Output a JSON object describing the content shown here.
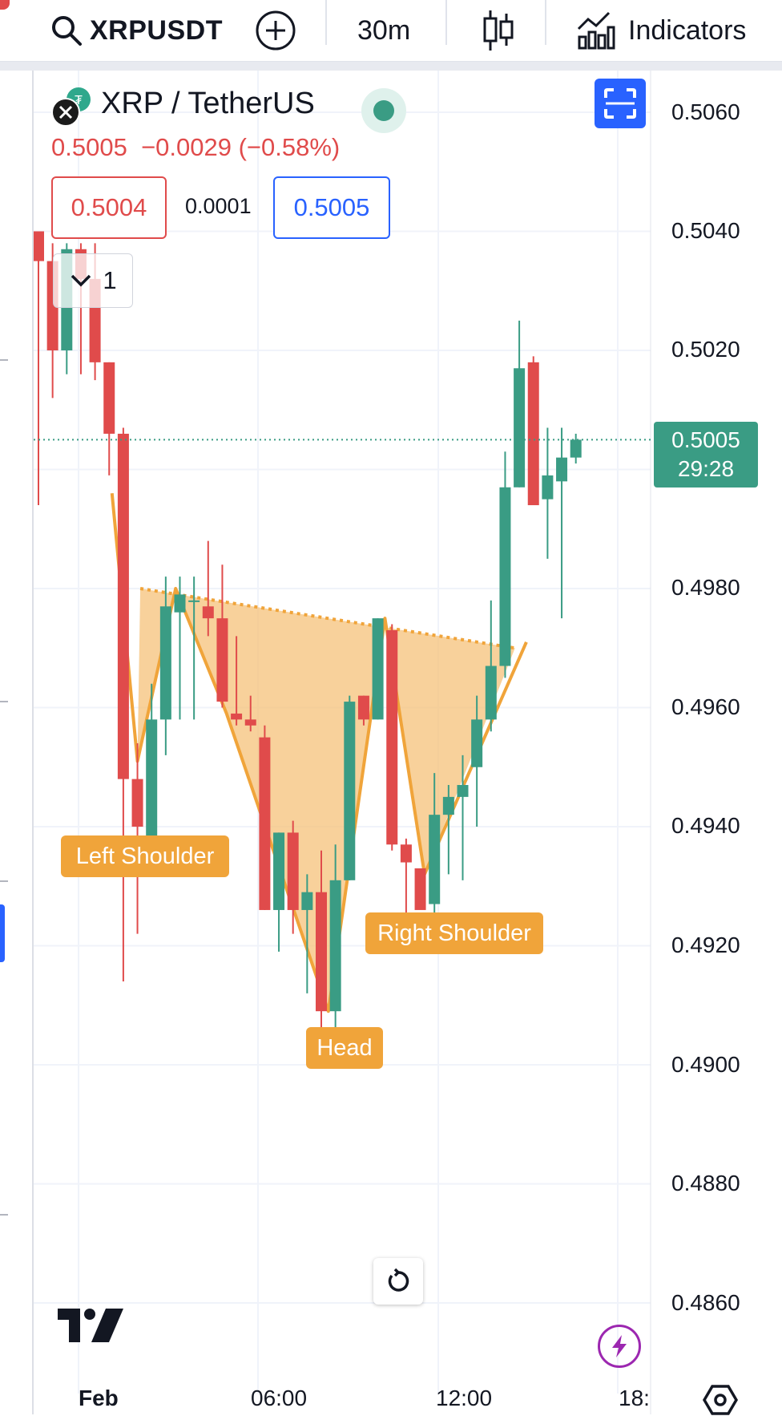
{
  "toolbar": {
    "symbol": "XRPUSDT",
    "interval": "30m",
    "indicators_label": "Indicators",
    "icons": [
      "search-icon",
      "add-compare-icon",
      "candles-icon",
      "indicators-icon"
    ]
  },
  "legend": {
    "pair": "XRP / TetherUS",
    "last": "0.5005",
    "change": "−0.0029",
    "change_pct": "(−0.58%)",
    "sell": "0.5004",
    "spread": "0.0001",
    "buy": "0.5005",
    "collapsed_count": "1"
  },
  "price_axis": {
    "labels": [
      "0.5060",
      "0.5040",
      "0.5020",
      "0.4980",
      "0.4960",
      "0.4940",
      "0.4920",
      "0.4900",
      "0.4880",
      "0.4860"
    ],
    "current_price": "0.5005",
    "countdown": "29:28"
  },
  "time_axis": {
    "labels": [
      "Feb",
      "06:00",
      "12:00",
      "18:"
    ]
  },
  "pattern": {
    "left_shoulder": "Left Shoulder",
    "head": "Head",
    "right_shoulder": "Right Shoulder"
  },
  "colors": {
    "up": "#3a9c84",
    "down": "#e04b4b",
    "pattern_fill": "#f5c27a",
    "pattern_line": "#f0a43a",
    "accent": "#2962ff"
  },
  "chart_data": {
    "type": "candlestick",
    "symbol": "XRPUSDT",
    "interval": "30m",
    "ylim": [
      0.4852,
      0.507
    ],
    "candles": [
      {
        "o": 0.504,
        "h": 0.504,
        "l": 0.4994,
        "c": 0.5035
      },
      {
        "o": 0.5035,
        "h": 0.5038,
        "l": 0.5012,
        "c": 0.502
      },
      {
        "o": 0.502,
        "h": 0.5038,
        "l": 0.5016,
        "c": 0.5037
      },
      {
        "o": 0.5037,
        "h": 0.5038,
        "l": 0.5016,
        "c": 0.5032
      },
      {
        "o": 0.5032,
        "h": 0.5038,
        "l": 0.5015,
        "c": 0.5018
      },
      {
        "o": 0.5018,
        "h": 0.5018,
        "l": 0.4999,
        "c": 0.5006
      },
      {
        "o": 0.5006,
        "h": 0.5007,
        "l": 0.4914,
        "c": 0.4948
      },
      {
        "o": 0.4948,
        "h": 0.4954,
        "l": 0.4922,
        "c": 0.494
      },
      {
        "o": 0.4938,
        "h": 0.4964,
        "l": 0.4936,
        "c": 0.4958
      },
      {
        "o": 0.4958,
        "h": 0.4982,
        "l": 0.4952,
        "c": 0.4977
      },
      {
        "o": 0.4976,
        "h": 0.4982,
        "l": 0.4958,
        "c": 0.4979
      },
      {
        "o": 0.4978,
        "h": 0.4982,
        "l": 0.4958,
        "c": 0.4978
      },
      {
        "o": 0.4977,
        "h": 0.4988,
        "l": 0.4972,
        "c": 0.4975
      },
      {
        "o": 0.4975,
        "h": 0.4984,
        "l": 0.496,
        "c": 0.4961
      },
      {
        "o": 0.4959,
        "h": 0.4972,
        "l": 0.4957,
        "c": 0.4958
      },
      {
        "o": 0.4958,
        "h": 0.4962,
        "l": 0.4956,
        "c": 0.4957
      },
      {
        "o": 0.4955,
        "h": 0.4957,
        "l": 0.4926,
        "c": 0.4926
      },
      {
        "o": 0.4926,
        "h": 0.4939,
        "l": 0.4919,
        "c": 0.4939
      },
      {
        "o": 0.4939,
        "h": 0.4941,
        "l": 0.4922,
        "c": 0.4926
      },
      {
        "o": 0.4926,
        "h": 0.4932,
        "l": 0.4912,
        "c": 0.4929
      },
      {
        "o": 0.4929,
        "h": 0.4936,
        "l": 0.4901,
        "c": 0.4909
      },
      {
        "o": 0.4909,
        "h": 0.4937,
        "l": 0.4904,
        "c": 0.4931
      },
      {
        "o": 0.4931,
        "h": 0.4962,
        "l": 0.4931,
        "c": 0.4961
      },
      {
        "o": 0.4962,
        "h": 0.4962,
        "l": 0.4957,
        "c": 0.4958
      },
      {
        "o": 0.4958,
        "h": 0.4975,
        "l": 0.4958,
        "c": 0.4975
      },
      {
        "o": 0.4973,
        "h": 0.4974,
        "l": 0.4936,
        "c": 0.4937
      },
      {
        "o": 0.4937,
        "h": 0.4938,
        "l": 0.4924,
        "c": 0.4934
      },
      {
        "o": 0.4933,
        "h": 0.4933,
        "l": 0.4927,
        "c": 0.4926
      },
      {
        "o": 0.4927,
        "h": 0.4949,
        "l": 0.4925,
        "c": 0.4942
      },
      {
        "o": 0.4942,
        "h": 0.4947,
        "l": 0.4932,
        "c": 0.4945
      },
      {
        "o": 0.4945,
        "h": 0.4952,
        "l": 0.4931,
        "c": 0.4947
      },
      {
        "o": 0.495,
        "h": 0.4962,
        "l": 0.494,
        "c": 0.4958
      },
      {
        "o": 0.4958,
        "h": 0.4978,
        "l": 0.4956,
        "c": 0.4967
      },
      {
        "o": 0.4967,
        "h": 0.5003,
        "l": 0.4965,
        "c": 0.4997
      },
      {
        "o": 0.4997,
        "h": 0.5025,
        "l": 0.4997,
        "c": 0.5017
      },
      {
        "o": 0.5018,
        "h": 0.5019,
        "l": 0.4994,
        "c": 0.4994
      },
      {
        "o": 0.4995,
        "h": 0.5007,
        "l": 0.4985,
        "c": 0.4999
      },
      {
        "o": 0.4998,
        "h": 0.5007,
        "l": 0.4975,
        "c": 0.5002
      },
      {
        "o": 0.5002,
        "h": 0.5006,
        "l": 0.5001,
        "c": 0.5005
      }
    ],
    "current_price": 0.5005,
    "pattern": {
      "name": "inverse head and shoulders",
      "points": [
        {
          "i": 5.2,
          "p": 0.4996
        },
        {
          "i": 7.0,
          "p": 0.4951
        },
        {
          "i": 9.7,
          "p": 0.498
        },
        {
          "i": 13.3,
          "p": 0.4959
        },
        {
          "i": 20.5,
          "p": 0.4909
        },
        {
          "i": 24.5,
          "p": 0.4975
        },
        {
          "i": 27.3,
          "p": 0.4932
        },
        {
          "i": 34.5,
          "p": 0.4971
        }
      ],
      "neckline": [
        {
          "i": 7.2,
          "p": 0.498
        },
        {
          "i": 33.7,
          "p": 0.497
        }
      ]
    }
  }
}
